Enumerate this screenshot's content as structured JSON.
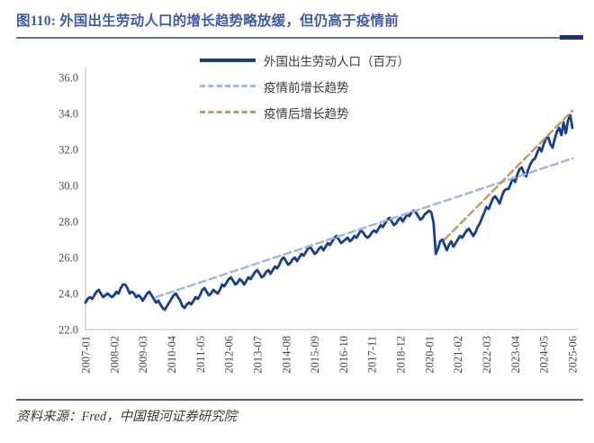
{
  "header": {
    "title": "图110:  外国出生劳动人口的增长趋势略放缓，但仍高于疫情前"
  },
  "footer": {
    "source": "资料来源：Fred，中国银河证券研究院"
  },
  "palette": {
    "title_blue": "#3d5ca8",
    "rule_blue": "#5873b5",
    "rule_accent_navy": "#1f2f77",
    "footer_rule_blue": "#3f5fa9",
    "axis_gray": "#c9c9c9",
    "tick_text_gray": "#4a4a4a",
    "series_navy": "#153e96",
    "trend_pre_lightblue": "#9db7e6",
    "trend_post_tan": "#c79a60"
  },
  "legend": {
    "items": [
      {
        "label": "外国出生劳动人口（百万）",
        "style": "solid",
        "color": "#153e96"
      },
      {
        "label": "疫情前增长趋势",
        "style": "dashed",
        "color": "#9db7e6"
      },
      {
        "label": "疫情后增长趋势",
        "style": "dashed",
        "color": "#c79a60"
      }
    ]
  },
  "chart_data": {
    "type": "line",
    "x_unit": "month",
    "x_range": [
      "2007-01",
      "2025-06"
    ],
    "x_tick_interval_months": 13,
    "x_tick_labels": [
      "2007-01",
      "2008-02",
      "2009-03",
      "2010-04",
      "2011-05",
      "2012-06",
      "2013-07",
      "2014-08",
      "2015-09",
      "2016-10",
      "2017-11",
      "2018-12",
      "2020-01",
      "2021-02",
      "2022-03",
      "2023-04",
      "2024-05",
      "2025-06"
    ],
    "ylim": [
      22.0,
      36.0
    ],
    "y_tick_labels": [
      "22.0",
      "24.0",
      "26.0",
      "28.0",
      "30.0",
      "32.0",
      "34.0",
      "36.0"
    ],
    "grid": false,
    "legend_position": "top-center",
    "series": [
      {
        "name": "外国出生劳动人口（百万）",
        "color": "#153e96",
        "freq": "monthly",
        "start": "2007-01",
        "values": [
          23.5,
          23.7,
          23.8,
          23.7,
          23.9,
          24.1,
          24.2,
          24.0,
          23.8,
          23.9,
          24.0,
          23.9,
          23.8,
          23.9,
          24.1,
          24.0,
          24.3,
          24.5,
          24.5,
          24.3,
          24.0,
          24.1,
          24.0,
          23.8,
          23.9,
          23.8,
          23.6,
          23.8,
          24.0,
          24.1,
          23.9,
          23.7,
          23.5,
          23.6,
          23.4,
          23.2,
          23.1,
          23.3,
          23.5,
          23.7,
          23.9,
          24.0,
          23.8,
          23.6,
          23.3,
          23.2,
          23.4,
          23.5,
          23.4,
          23.6,
          23.8,
          23.7,
          23.9,
          24.2,
          24.3,
          24.1,
          23.9,
          24.0,
          24.2,
          24.1,
          24.0,
          24.2,
          24.5,
          24.4,
          24.6,
          24.8,
          24.9,
          24.7,
          24.5,
          24.6,
          24.8,
          24.7,
          24.5,
          24.7,
          24.9,
          24.8,
          25.0,
          25.2,
          25.3,
          25.1,
          24.9,
          25.0,
          25.2,
          25.3,
          25.1,
          25.3,
          25.5,
          25.4,
          25.6,
          25.9,
          26.0,
          25.8,
          25.6,
          25.7,
          25.9,
          26.0,
          25.8,
          26.0,
          26.2,
          26.1,
          26.3,
          26.5,
          26.6,
          26.4,
          26.2,
          26.3,
          26.5,
          26.6,
          26.4,
          26.6,
          26.8,
          26.7,
          26.9,
          27.1,
          27.2,
          27.0,
          26.8,
          26.9,
          27.0,
          27.1,
          26.9,
          27.0,
          27.2,
          27.1,
          27.3,
          27.5,
          27.4,
          27.2,
          27.1,
          27.2,
          27.4,
          27.5,
          27.4,
          27.6,
          27.8,
          27.7,
          27.9,
          28.1,
          28.2,
          28.0,
          27.8,
          27.9,
          28.1,
          28.2,
          28.0,
          28.2,
          28.4,
          28.3,
          28.5,
          28.6,
          28.5,
          28.3,
          28.1,
          28.2,
          28.4,
          28.5,
          28.6,
          28.5,
          27.9,
          26.2,
          26.5,
          26.9,
          27.0,
          26.7,
          26.4,
          26.7,
          26.9,
          26.6,
          26.8,
          27.0,
          27.2,
          27.1,
          27.3,
          27.5,
          27.6,
          27.4,
          27.2,
          27.4,
          27.7,
          27.9,
          28.2,
          28.5,
          28.8,
          28.7,
          29.0,
          29.3,
          29.4,
          29.2,
          29.0,
          29.4,
          29.7,
          29.8,
          29.8,
          30.1,
          30.4,
          30.2,
          30.6,
          30.9,
          31.0,
          30.7,
          30.5,
          30.9,
          31.2,
          31.4,
          31.5,
          31.8,
          32.1,
          31.9,
          32.3,
          32.6,
          32.7,
          32.3,
          32.1,
          32.6,
          33.0,
          33.2,
          32.8,
          33.5,
          32.9,
          33.6,
          33.9,
          33.2
        ]
      }
    ],
    "trend_lines": [
      {
        "name": "疫情前增长趋势",
        "color": "#9db7e6",
        "start": "2009-09",
        "start_value": 23.8,
        "end": "2025-06",
        "end_value": 31.5
      },
      {
        "name": "疫情后增长趋势",
        "color": "#c79a60",
        "start": "2020-08",
        "start_value": 27.0,
        "end": "2025-06",
        "end_value": 34.15
      }
    ]
  }
}
